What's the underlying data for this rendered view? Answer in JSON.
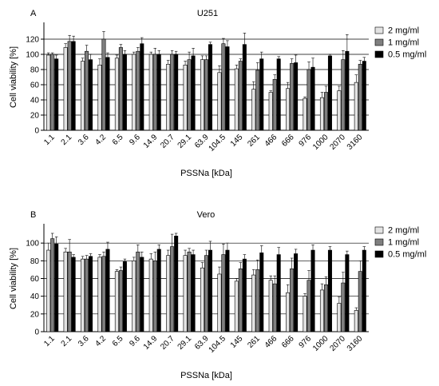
{
  "colors": {
    "s2": "#e3e3e3",
    "s1": "#7f7f7f",
    "s05": "#000000"
  },
  "chart_data": [
    {
      "panel_letter": "A",
      "type": "bar",
      "title": "U251",
      "xlabel": "PSSNa [kDa]",
      "ylabel": "Cell viability [%]",
      "ylim": [
        0,
        140
      ],
      "yticks": [
        "0",
        "20",
        "40",
        "60",
        "80",
        "100",
        "120"
      ],
      "categories": [
        "1.1",
        "2.1",
        "3.6",
        "4.2",
        "6.5",
        "9.6",
        "14.9",
        "20.7",
        "29.1",
        "63.9",
        "104.5",
        "145",
        "261",
        "466",
        "666",
        "976",
        "1000",
        "2070",
        "3160"
      ],
      "grid": true,
      "legend_position": "right",
      "series": [
        {
          "name": "2 mg/ml",
          "values": [
            99,
            109,
            91,
            86,
            95,
            100,
            100,
            87,
            86,
            93,
            76,
            81,
            54,
            50,
            55,
            42,
            43,
            52,
            63
          ],
          "errors": [
            3,
            5,
            4,
            8,
            4,
            3,
            3,
            5,
            5,
            5,
            9,
            5,
            10,
            2,
            8,
            2,
            7,
            6,
            10
          ]
        },
        {
          "name": "1 mg/ml",
          "values": [
            100,
            117,
            104,
            120,
            109,
            104,
            100,
            100,
            93,
            93,
            114,
            91,
            79,
            67,
            88,
            80,
            50,
            93,
            87
          ],
          "errors": [
            2,
            8,
            8,
            10,
            4,
            5,
            8,
            5,
            10,
            5,
            7,
            3,
            10,
            6,
            6,
            10,
            8,
            12,
            5
          ]
        },
        {
          "name": "0.5 mg/ml",
          "values": [
            94,
            117,
            93,
            96,
            100,
            114,
            100,
            100,
            98,
            113,
            110,
            113,
            94,
            94,
            89,
            83,
            98,
            104,
            91
          ],
          "errors": [
            5,
            7,
            7,
            6,
            5,
            8,
            5,
            4,
            10,
            3,
            8,
            15,
            9,
            3,
            10,
            12,
            2,
            22,
            5
          ]
        }
      ]
    },
    {
      "panel_letter": "B",
      "type": "bar",
      "title": "Vero",
      "xlabel": "PSSNa [kDa]",
      "ylabel": "Cell viability [%]",
      "ylim": [
        0,
        120
      ],
      "yticks": [
        "0",
        "20",
        "40",
        "60",
        "80",
        "100"
      ],
      "categories": [
        "1.1",
        "2.1",
        "3.6",
        "4.2",
        "6.5",
        "9.6",
        "14.9",
        "20.7",
        "29.1",
        "63.9",
        "104.5",
        "145",
        "261",
        "466",
        "666",
        "976",
        "1000",
        "2070",
        "3160"
      ],
      "grid": true,
      "legend_position": "right",
      "series": [
        {
          "name": "2 mg/ml",
          "values": [
            92,
            90,
            82,
            84,
            68,
            80,
            82,
            86,
            86,
            72,
            65,
            57,
            64,
            58,
            44,
            40,
            47,
            32,
            24
          ],
          "errors": [
            8,
            4,
            3,
            3,
            2,
            4,
            6,
            6,
            6,
            6,
            8,
            3,
            6,
            5,
            9,
            3,
            7,
            7,
            3
          ]
        },
        {
          "name": "1 mg/ml",
          "values": [
            105,
            90,
            82,
            85,
            69,
            90,
            80,
            96,
            90,
            86,
            87,
            71,
            70,
            54,
            71,
            58,
            53,
            55,
            68
          ],
          "errors": [
            6,
            14,
            4,
            5,
            4,
            8,
            10,
            14,
            4,
            6,
            12,
            7,
            11,
            9,
            12,
            11,
            9,
            12,
            12
          ]
        },
        {
          "name": "0.5 mg/ml",
          "values": [
            99,
            84,
            85,
            93,
            79,
            84,
            93,
            108,
            87,
            92,
            92,
            82,
            89,
            87,
            88,
            92,
            92,
            87,
            92
          ],
          "errors": [
            8,
            3,
            3,
            8,
            3,
            6,
            5,
            3,
            5,
            10,
            8,
            5,
            8,
            8,
            5,
            6,
            4,
            4,
            4
          ]
        }
      ]
    }
  ]
}
